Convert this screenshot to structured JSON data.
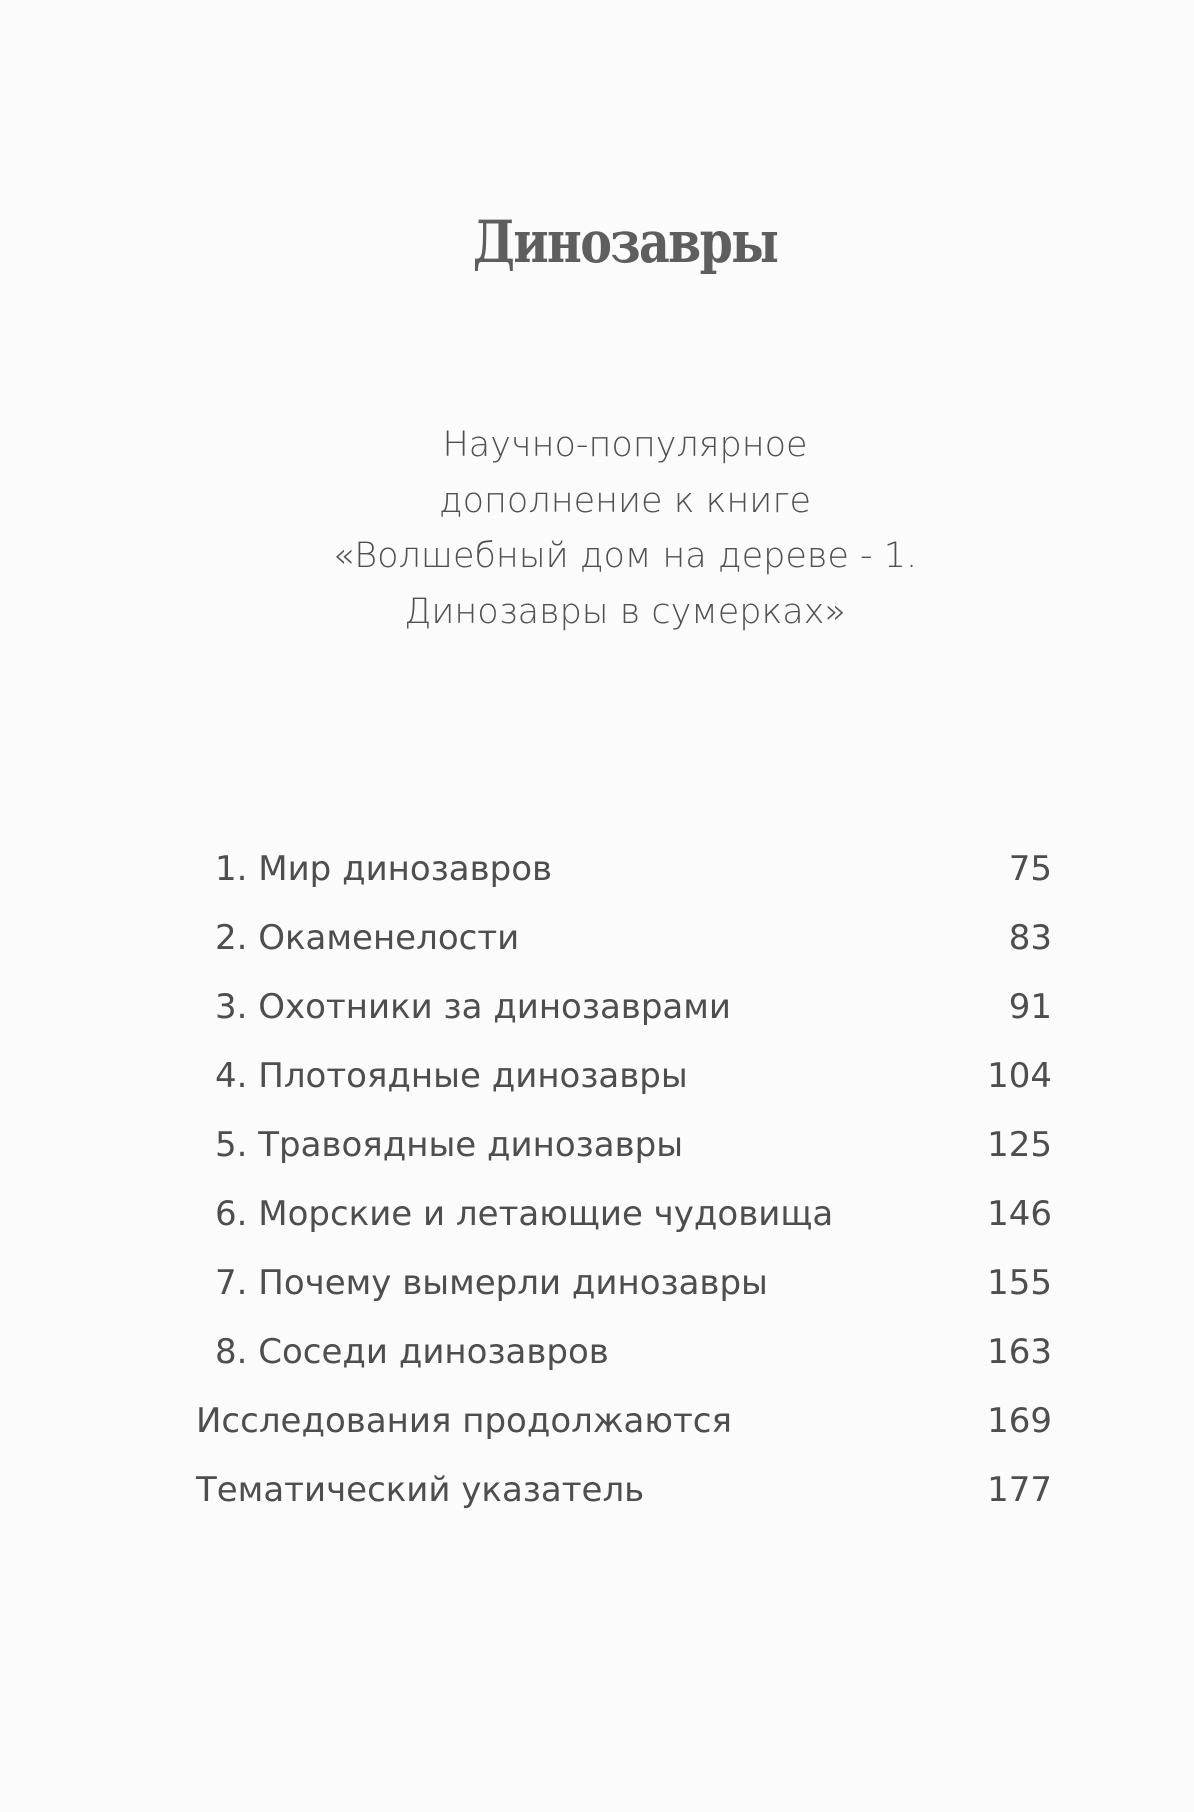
{
  "title": "Динозавры",
  "subtitle": {
    "lines": [
      "Научно-популярное",
      "дополнение к книге",
      "«Волшебный дом на дереве - 1.",
      "Динозавры в сумерках»"
    ]
  },
  "toc": [
    {
      "label": "1. Мир динозавров",
      "page": "75",
      "numbered": true
    },
    {
      "label": "2. Окаменелости",
      "page": "83",
      "numbered": true
    },
    {
      "label": "3. Охотники за динозаврами",
      "page": "91",
      "numbered": true
    },
    {
      "label": "4. Плотоядные динозавры",
      "page": "104",
      "numbered": true
    },
    {
      "label": "5. Травоядные динозавры",
      "page": "125",
      "numbered": true
    },
    {
      "label": "6. Морские и летающие чудовища",
      "page": "146",
      "numbered": true
    },
    {
      "label": "7. Почему вымерли динозавры",
      "page": "155",
      "numbered": true
    },
    {
      "label": "8. Соседи динозавров",
      "page": "163",
      "numbered": true
    },
    {
      "label": "Исследования продолжаются",
      "page": "169",
      "numbered": false
    },
    {
      "label": "Тематический указатель",
      "page": "177",
      "numbered": false
    }
  ]
}
